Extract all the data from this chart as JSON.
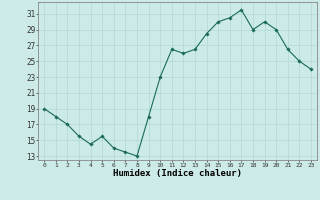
{
  "x": [
    0,
    1,
    2,
    3,
    4,
    5,
    6,
    7,
    8,
    9,
    10,
    11,
    12,
    13,
    14,
    15,
    16,
    17,
    18,
    19,
    20,
    21,
    22,
    23
  ],
  "y": [
    19,
    18,
    17,
    15.5,
    14.5,
    15.5,
    14,
    13.5,
    13,
    18,
    23,
    26.5,
    26,
    26.5,
    28.5,
    30,
    30.5,
    31.5,
    29,
    30,
    29,
    26.5,
    25,
    24
  ],
  "line_color": "#1a6b5a",
  "marker_color": "#1a6b5a",
  "bg_color": "#cceae7",
  "grid_color": "#b0d8d5",
  "xlabel": "Humidex (Indice chaleur)",
  "ylim": [
    12.5,
    32.5
  ],
  "xlim": [
    -0.5,
    23.5
  ],
  "yticks": [
    13,
    15,
    17,
    19,
    21,
    23,
    25,
    27,
    29,
    31
  ],
  "xticks": [
    0,
    1,
    2,
    3,
    4,
    5,
    6,
    7,
    8,
    9,
    10,
    11,
    12,
    13,
    14,
    15,
    16,
    17,
    18,
    19,
    20,
    21,
    22,
    23
  ]
}
